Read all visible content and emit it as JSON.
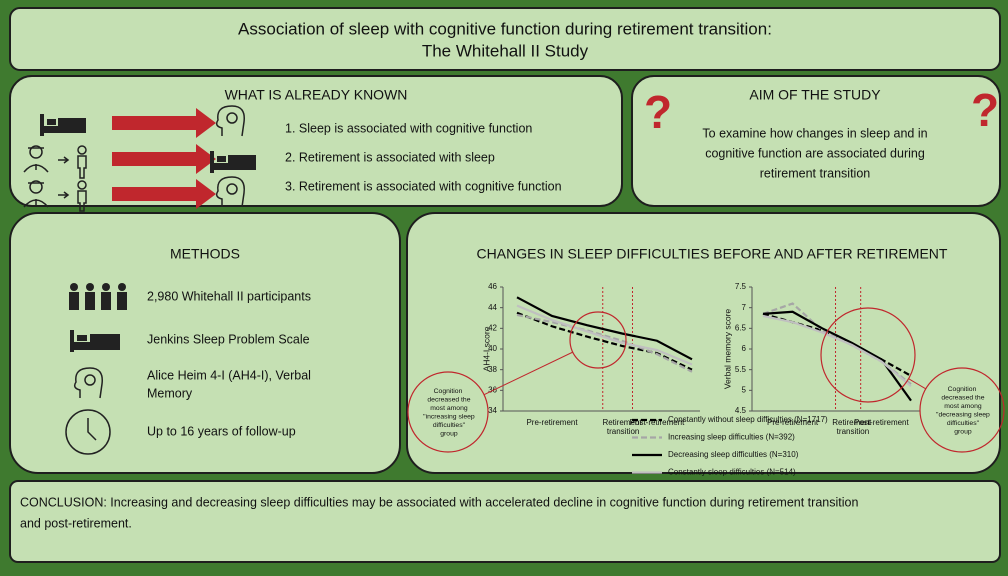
{
  "title": [
    "Association of sleep with cognitive function during retirement transition:",
    "The Whitehall II Study"
  ],
  "known": {
    "heading": "WHAT IS ALREADY KNOWN",
    "items": [
      "1. Sleep is associated with cognitive function",
      "2. Retirement is associated with sleep",
      "3. Retirement is associated with cognitive function"
    ]
  },
  "aim": {
    "heading": "AIM OF THE STUDY",
    "mark": "?",
    "text": [
      "To examine how changes in sleep and in",
      "cognitive function are associated during",
      "retirement transition"
    ]
  },
  "methods": {
    "heading": "METHODS",
    "items": [
      "2,980 Whitehall II participants",
      "Jenkins Sleep Problem Scale",
      "Alice Heim 4-I (AH4-I), Verbal",
      "Memory",
      "Up to 16 years of follow-up"
    ]
  },
  "changes": {
    "heading": "CHANGES IN SLEEP DIFFICULTIES BEFORE AND AFTER RETIREMENT"
  },
  "conclusion": [
    "CONCLUSION: Increasing and decreasing sleep difficulties may be associated with accelerated decline in cognitive function during retirement transition",
    "and post-retirement."
  ],
  "chart_data": [
    {
      "type": "line",
      "y_label": "AH4-I score",
      "categories": [
        null,
        "Pre-retirement",
        null,
        "Retirement transition",
        "Post-retirement",
        null
      ],
      "ylim": [
        34,
        46
      ],
      "yticks": [
        34,
        36,
        38,
        40,
        42,
        44,
        46
      ],
      "annotation": "Cognition decreased the most among \"increasing sleep difficulties\" group",
      "series": [
        {
          "name": "Constantly without sleep difficulties (N=1717)",
          "color": "#000000",
          "dash": true,
          "values": [
            43.5,
            42.2,
            41.2,
            40.3,
            39.6,
            38.0
          ]
        },
        {
          "name": "Increasing sleep difficulties (N=392)",
          "color": "#a6a6a6",
          "dash": true,
          "values": [
            43.3,
            42.6,
            41.8,
            40.8,
            39.5,
            37.8
          ]
        },
        {
          "name": "Decreasing sleep difficulties (N=310)",
          "color": "#000000",
          "dash": false,
          "values": [
            45.0,
            43.2,
            42.3,
            41.5,
            40.8,
            39.0
          ]
        },
        {
          "name": "Constantly sleep difficulties (N=514)",
          "color": "#c0c0c0",
          "dash": false,
          "values": [
            44.2,
            42.8,
            41.7,
            40.6,
            39.9,
            38.5
          ]
        }
      ]
    },
    {
      "type": "line",
      "y_label": "Verbal memory score",
      "categories": [
        null,
        "Pre-retirement",
        null,
        "Retirement transition",
        "Post-retirement",
        null
      ],
      "ylim": [
        4.5,
        7.5
      ],
      "yticks": [
        4.5,
        5,
        5.5,
        6,
        6.5,
        7,
        7.5
      ],
      "annotation": "Cognition decreased the most among \"decreasing sleep difficulties\" group",
      "series": [
        {
          "color": "#000000",
          "dash": true,
          "values": [
            6.85,
            6.65,
            6.45,
            6.1,
            5.75,
            5.35
          ]
        },
        {
          "color": "#a6a6a6",
          "dash": true,
          "values": [
            6.85,
            7.1,
            6.45,
            6.1,
            5.7,
            5.15
          ]
        },
        {
          "color": "#000000",
          "dash": false,
          "values": [
            6.85,
            6.9,
            6.5,
            6.15,
            5.75,
            4.75
          ]
        },
        {
          "color": "#c0c0c0",
          "dash": false,
          "values": [
            6.8,
            6.65,
            6.4,
            6.1,
            5.7,
            5.1
          ]
        }
      ]
    }
  ]
}
